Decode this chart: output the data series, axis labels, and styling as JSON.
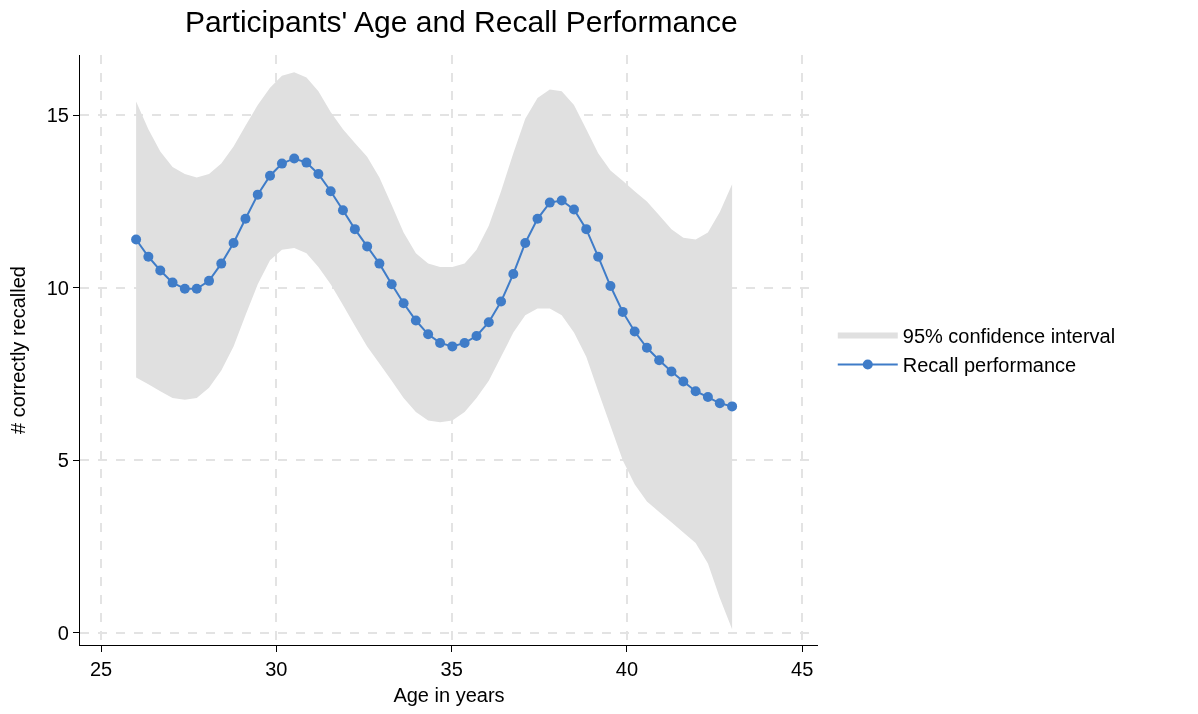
{
  "chart_data": {
    "type": "line",
    "title": "Participants' Age and Recall Performance",
    "xlabel": "Age in years",
    "ylabel": "# correctly recalled",
    "x": [
      26.0,
      26.35,
      26.69,
      27.04,
      27.39,
      27.73,
      28.08,
      28.43,
      28.78,
      29.12,
      29.47,
      29.82,
      30.16,
      30.51,
      30.86,
      31.2,
      31.55,
      31.9,
      32.24,
      32.59,
      32.94,
      33.29,
      33.63,
      33.98,
      34.33,
      34.67,
      35.02,
      35.37,
      35.71,
      36.06,
      36.41,
      36.76,
      37.1,
      37.45,
      37.8,
      38.14,
      38.49,
      38.84,
      39.18,
      39.53,
      39.88,
      40.22,
      40.57,
      40.92,
      41.27,
      41.61,
      41.96,
      42.31,
      42.65,
      43.0
    ],
    "series": [
      {
        "name": "95% confidence interval",
        "type": "area",
        "color": "#e0e0e0",
        "values": [
          null,
          null,
          null,
          null,
          null,
          null,
          null,
          null,
          null,
          null,
          null,
          null,
          null,
          null,
          null,
          null,
          null,
          null,
          null,
          null,
          null,
          null,
          null,
          null,
          null,
          null,
          null,
          null,
          null,
          null,
          null,
          null,
          null,
          null,
          null,
          null,
          null,
          null,
          null,
          null,
          null,
          null,
          null,
          null,
          null,
          null,
          null,
          null,
          null,
          null
        ],
        "upper": [
          15.4,
          14.6,
          13.95,
          13.5,
          13.3,
          13.2,
          13.3,
          13.6,
          14.1,
          14.7,
          15.3,
          15.8,
          16.15,
          16.25,
          16.1,
          15.7,
          15.1,
          14.6,
          14.2,
          13.8,
          13.2,
          12.4,
          11.6,
          11.0,
          10.7,
          10.6,
          10.6,
          10.7,
          11.1,
          11.8,
          12.8,
          13.9,
          14.9,
          15.5,
          15.75,
          15.7,
          15.3,
          14.6,
          13.9,
          13.4,
          13.1,
          12.8,
          12.5,
          12.1,
          11.7,
          11.45,
          11.4,
          11.6,
          12.2,
          13.0
        ],
        "lower": [
          7.4,
          7.2,
          7.0,
          6.8,
          6.75,
          6.8,
          7.1,
          7.6,
          8.3,
          9.2,
          10.1,
          10.8,
          11.1,
          11.15,
          11.0,
          10.6,
          10.1,
          9.5,
          8.9,
          8.3,
          7.8,
          7.3,
          6.8,
          6.4,
          6.15,
          6.1,
          6.15,
          6.4,
          6.8,
          7.3,
          8.0,
          8.7,
          9.2,
          9.4,
          9.4,
          9.2,
          8.7,
          8.0,
          7.0,
          6.0,
          5.0,
          4.3,
          3.8,
          3.5,
          3.2,
          2.9,
          2.6,
          2.0,
          1.0,
          0.1
        ]
      },
      {
        "name": "Recall performance",
        "color": "#3f7cc8",
        "values": [
          11.4,
          10.9,
          10.5,
          10.15,
          9.97,
          9.97,
          10.2,
          10.7,
          11.3,
          12.0,
          12.7,
          13.25,
          13.6,
          13.75,
          13.63,
          13.3,
          12.8,
          12.25,
          11.7,
          11.2,
          10.7,
          10.1,
          9.55,
          9.05,
          8.65,
          8.4,
          8.3,
          8.4,
          8.6,
          9.0,
          9.6,
          10.4,
          11.3,
          12.0,
          12.47,
          12.53,
          12.27,
          11.7,
          10.9,
          10.05,
          9.3,
          8.73,
          8.26,
          7.9,
          7.57,
          7.28,
          7.0,
          6.83,
          6.65,
          6.56
        ]
      }
    ],
    "xlim": [
      24.4,
      45.45
    ],
    "xticks": [
      25,
      30,
      35,
      40,
      45
    ],
    "ylim": [
      -0.36,
      16.75
    ],
    "yticks": [
      0,
      5,
      10,
      15
    ],
    "grid": true,
    "legend": "right",
    "marker": "circle",
    "line_style": "solid"
  }
}
